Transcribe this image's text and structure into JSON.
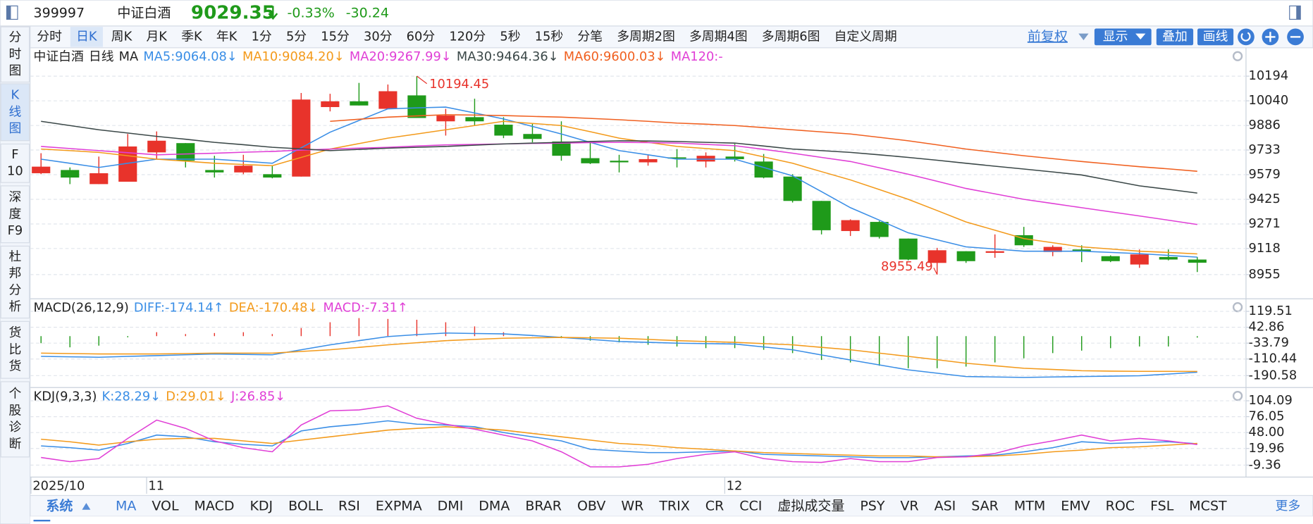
{
  "header": {
    "code": "399997",
    "name": "中证白酒",
    "price": "9029.35",
    "change_pct": "-0.33%",
    "change": "-30.24"
  },
  "side_tabs": [
    [
      "分",
      "时",
      "图"
    ],
    [
      "K",
      "线",
      "图"
    ],
    [
      "F",
      "10"
    ],
    [
      "深",
      "度",
      "F9"
    ],
    [
      "杜",
      "邦",
      "分",
      "析"
    ],
    [
      "货",
      "比",
      "货"
    ],
    [
      "个",
      "股",
      "诊",
      "断"
    ]
  ],
  "periods": [
    "分时",
    "日K",
    "周K",
    "月K",
    "季K",
    "年K",
    "1分",
    "5分",
    "15分",
    "30分",
    "60分",
    "120分",
    "5秒",
    "15秒",
    "分笔",
    "多周期2图",
    "多周期4图",
    "多周期6图",
    "自定义周期"
  ],
  "adjust": "前复权",
  "buttons": [
    "显示",
    "叠加",
    "画线"
  ],
  "system": "系统",
  "indicators": [
    "MA",
    "VOL",
    "MACD",
    "KDJ",
    "BOLL",
    "RSI",
    "EXPMA",
    "DMI",
    "DMA",
    "BRAR",
    "OBV",
    "WR",
    "TRIX",
    "CR",
    "CCI",
    "虚拟成交量",
    "PSY",
    "VR",
    "ASI",
    "SAR",
    "MTM",
    "EMV",
    "ROC",
    "FSL",
    "MCST"
  ],
  "more": "更多",
  "chart_data": [
    {
      "type": "candlestick",
      "title": "中证白酒",
      "subtitle": "日线",
      "indicator": "MA",
      "categories": [
        "2025/10",
        null,
        null,
        null,
        "11",
        null,
        null,
        null,
        null,
        null,
        null,
        null,
        null,
        null,
        null,
        null,
        null,
        null,
        null,
        null,
        null,
        null,
        null,
        null,
        "12",
        null,
        null,
        null,
        null,
        null,
        null,
        null,
        null,
        null,
        null,
        null,
        null,
        null,
        null,
        null,
        null
      ],
      "open": [
        9588,
        9608,
        9520,
        9535,
        9718,
        9776,
        9608,
        9593,
        9582,
        9567,
        10001,
        10037,
        9990,
        10074,
        9912,
        9938,
        9891,
        9833,
        9786,
        9682,
        9666,
        9656,
        9687,
        9661,
        9692,
        9661,
        9567,
        9415,
        9227,
        9284,
        9180,
        9028,
        9101,
        9091,
        9201,
        9096,
        9112,
        9070,
        9018,
        9065,
        9049
      ],
      "high": [
        9713,
        9624,
        9692,
        9833,
        9849,
        9776,
        9697,
        9703,
        9635,
        10089,
        10084,
        10152,
        10142,
        10194.45,
        9990,
        10053,
        9938,
        9896,
        9912,
        9781,
        9703,
        9703,
        9739,
        9718,
        9771,
        9708,
        9582,
        9415,
        9300,
        9290,
        9180,
        9122,
        9101,
        9206,
        9253,
        9138,
        9138,
        9075,
        9112,
        9112,
        9065
      ],
      "low": [
        9582,
        9520,
        9520,
        9535,
        9676,
        9624,
        9561,
        9582,
        9556,
        9567,
        9974,
        10011,
        9990,
        9933,
        9823,
        9886,
        9807,
        9781,
        9666,
        9645,
        9593,
        9635,
        9624,
        9624,
        9661,
        9556,
        9405,
        9206,
        9196,
        9180,
        9044,
        8955.49,
        9028,
        9060,
        9128,
        9070,
        9033,
        9033,
        8997,
        9044,
        8971
      ],
      "close": [
        9629,
        9561,
        9588,
        9755,
        9791,
        9666,
        9593,
        9635,
        9561,
        10048,
        10037,
        10011,
        10100,
        9933,
        9948,
        9912,
        9823,
        9802,
        9697,
        9650,
        9656,
        9676,
        9682,
        9697,
        9676,
        9561,
        9415,
        9232,
        9295,
        9190,
        9049,
        9107,
        9039,
        9101,
        9138,
        9128,
        9101,
        9039,
        9081,
        9049,
        9029.35
      ],
      "up_color": "#e8332b",
      "down_color": "#1f9a1a",
      "series": [
        {
          "label": "MA5:9064.08↓",
          "color": "#3a8ee6",
          "values": [
            9676,
            9650,
            9624,
            9650,
            9676,
            9676,
            9676,
            9663,
            9650,
            9747,
            9844,
            9917,
            9990,
            9996,
            10001,
            9964,
            9927,
            9880,
            9833,
            9781,
            9729,
            9703,
            9676,
            9676,
            9676,
            9624,
            9572,
            9473,
            9373,
            9295,
            9216,
            9172,
            9128,
            9115,
            9101,
            9101,
            9101,
            9094,
            9086,
            9075,
            9064.08
          ]
        },
        {
          "label": "MA10:9084.20↓",
          "color": "#f39a1b",
          "values": [
            9739,
            9729,
            9718,
            9697,
            9676,
            9663,
            9650,
            9643,
            9635,
            9687,
            9739,
            9773,
            9807,
            9833,
            9859,
            9886,
            9912,
            9899,
            9886,
            9847,
            9807,
            9781,
            9755,
            9742,
            9729,
            9690,
            9650,
            9598,
            9546,
            9486,
            9425,
            9355,
            9284,
            9232,
            9180,
            9154,
            9128,
            9115,
            9101,
            9093,
            9084.2
          ]
        },
        {
          "label": "MA20:9267.99↓",
          "color": "#e03fd6",
          "values": [
            9755,
            9742,
            9729,
            9716,
            9703,
            9708,
            9713,
            9719,
            9724,
            9732,
            9739,
            9745,
            9750,
            9758,
            9765,
            9768,
            9771,
            9774,
            9776,
            9779,
            9781,
            9779,
            9776,
            9768,
            9760,
            9737,
            9713,
            9687,
            9661,
            9622,
            9582,
            9538,
            9493,
            9459,
            9425,
            9399,
            9373,
            9347,
            9321,
            9295,
            9267.99
          ]
        },
        {
          "label": "MA30:9464.36↓",
          "color": "#3b4848",
          "values": [
            9912,
            9886,
            9859,
            9839,
            9818,
            9800,
            9781,
            9766,
            9750,
            9740,
            9729,
            9737,
            9744,
            9750,
            9755,
            9763,
            9771,
            9776,
            9781,
            9786,
            9791,
            9789,
            9786,
            9781,
            9776,
            9758,
            9739,
            9729,
            9718,
            9703,
            9687,
            9669,
            9650,
            9632,
            9614,
            9596,
            9577,
            9543,
            9509,
            9487,
            9464.36
          ]
        },
        {
          "label": "MA60:9600.03↓",
          "color": "#f06020",
          "values": [
            null,
            null,
            null,
            null,
            null,
            null,
            null,
            null,
            null,
            null,
            9912,
            9925,
            9938,
            9946,
            9953,
            9951,
            9948,
            9943,
            9938,
            9930,
            9922,
            9912,
            9901,
            9894,
            9886,
            9873,
            9859,
            9846,
            9833,
            9812,
            9791,
            9765,
            9739,
            9718,
            9697,
            9679,
            9661,
            9645,
            9629,
            9615,
            9600.03
          ]
        }
      ],
      "extra_labels": [
        "MA120:-"
      ],
      "max_label": "10194.45",
      "min_label": "8955.49",
      "ylim": [
        8809,
        10366
      ],
      "yticks": [
        10194,
        10040,
        9886,
        9733,
        9579,
        9425,
        9271,
        9118,
        8955
      ],
      "grid": true
    },
    {
      "type": "macd",
      "title": "MACD(26,12,9)",
      "series": [
        {
          "label": "DIFF:-174.14↑",
          "color": "#3a8ee6",
          "values": [
            -98,
            -100,
            -102,
            -98,
            -94,
            -90,
            -86,
            -88,
            -90,
            -66,
            -42,
            -22,
            -2,
            7,
            15,
            13,
            11,
            3,
            -6,
            -16,
            -26,
            -30,
            -34,
            -36,
            -38,
            -52,
            -66,
            -91,
            -115,
            -139,
            -163,
            -179,
            -195,
            -197,
            -199,
            -197,
            -195,
            -193,
            -191,
            -183,
            -174.14
          ]
        },
        {
          "label": "DEA:-170.48↓",
          "color": "#f39a1b",
          "values": [
            -82,
            -84,
            -86,
            -86,
            -86,
            -84,
            -82,
            -82,
            -82,
            -74,
            -66,
            -54,
            -42,
            -32,
            -22,
            -16,
            -10,
            -8,
            -6,
            -8,
            -10,
            -16,
            -22,
            -26,
            -30,
            -36,
            -42,
            -54,
            -66,
            -82,
            -98,
            -114,
            -131,
            -143,
            -155,
            -161,
            -167,
            -169,
            -170,
            -170,
            -170.48
          ]
        }
      ],
      "bars": {
        "label": "MACD:-7.31↑",
        "color": "#e03fd6",
        "values": [
          -34,
          -54,
          -46,
          -6,
          19,
          10,
          15,
          19,
          10,
          39,
          67,
          87,
          83,
          79,
          67,
          47,
          19,
          6,
          -10,
          -22,
          -30,
          -42,
          -50,
          -58,
          -58,
          -66,
          -82,
          -115,
          -127,
          -143,
          -155,
          -155,
          -147,
          -127,
          -107,
          -82,
          -70,
          -58,
          -50,
          -50,
          -7.31
        ],
        "up_color": "#e8332b",
        "down_color": "#1f9a1a"
      },
      "ylim": [
        -244,
        176
      ],
      "yticks": [
        119.51,
        42.86,
        -33.79,
        -110.44,
        -190.58
      ],
      "grid": true
    },
    {
      "type": "kdj",
      "title": "KDJ(9,3,3)",
      "series": [
        {
          "label": "K:28.29↓",
          "color": "#3a8ee6",
          "values": [
            24.4,
            21.4,
            17.0,
            28.8,
            43.6,
            40.6,
            31.8,
            27.3,
            24.4,
            50.9,
            58.3,
            62.8,
            68.7,
            62.8,
            61.3,
            58.3,
            48.0,
            40.6,
            33.3,
            18.5,
            15.5,
            12.6,
            12.6,
            14.1,
            15.5,
            9.6,
            8.2,
            6.7,
            5.2,
            3.7,
            3.7,
            5.2,
            6.7,
            8.2,
            14.1,
            21.4,
            31.8,
            28.8,
            30.3,
            31.8,
            28.29
          ]
        },
        {
          "label": "D:29.01↓",
          "color": "#f39a1b",
          "values": [
            36.2,
            31.8,
            25.9,
            31.8,
            36.2,
            37.7,
            37.7,
            33.3,
            28.8,
            34.7,
            40.6,
            46.5,
            52.4,
            55.4,
            58.3,
            55.4,
            52.4,
            46.5,
            40.6,
            34.7,
            28.8,
            25.9,
            21.4,
            18.5,
            15.5,
            12.6,
            11.1,
            9.6,
            8.2,
            6.7,
            6.7,
            5.2,
            5.2,
            6.7,
            9.6,
            14.1,
            17.0,
            21.4,
            22.9,
            25.9,
            29.01
          ]
        },
        {
          "label": "J:26.85↓",
          "color": "#e03fd6",
          "values": [
            4.1,
            -3.3,
            2.2,
            37.7,
            70.1,
            55.4,
            33.3,
            21.4,
            14.1,
            61.3,
            86.4,
            87.9,
            95.2,
            73.1,
            62.8,
            53.9,
            43.6,
            33.3,
            14.1,
            -12.5,
            -12.5,
            -8.1,
            2.2,
            9.6,
            14.1,
            2.2,
            -3.3,
            -4.7,
            2.2,
            -3.3,
            -3.3,
            4.1,
            5.2,
            11.1,
            24.4,
            33.3,
            43.6,
            33.3,
            37.7,
            33.3,
            26.85
          ]
        }
      ],
      "ylim": [
        -29,
        126
      ],
      "yticks": [
        104.09,
        76.05,
        {
          "value": 48,
          "label": "48.00"
        },
        19.96,
        -9.36
      ],
      "grid": true
    }
  ]
}
